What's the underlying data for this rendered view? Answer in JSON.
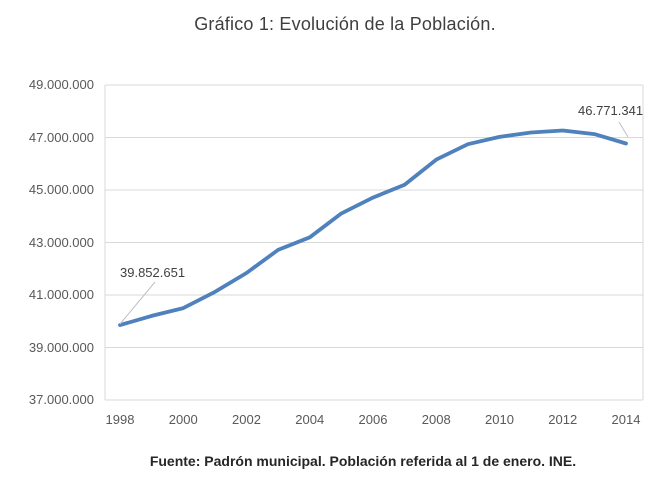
{
  "chart_data": {
    "type": "line",
    "title": "Gráfico 1: Evolución de la Población.",
    "source": "Fuente: Padrón municipal. Población referida al 1 de enero. INE.",
    "xlabel": "",
    "ylabel": "",
    "x": [
      1998,
      1999,
      2000,
      2001,
      2002,
      2003,
      2004,
      2005,
      2006,
      2007,
      2008,
      2009,
      2010,
      2011,
      2012,
      2013,
      2014
    ],
    "series": [
      {
        "name": "Población",
        "values": [
          39852651,
          40202160,
          40499791,
          41116842,
          41837894,
          42717064,
          43197684,
          44108530,
          44708964,
          45200737,
          46157822,
          46745807,
          47021031,
          47190493,
          47265321,
          47129783,
          46771341
        ]
      }
    ],
    "x_ticks": [
      "1998",
      "2000",
      "2002",
      "2004",
      "2006",
      "2008",
      "2010",
      "2012",
      "2014"
    ],
    "y_ticks": [
      "49.000.000",
      "47.000.000",
      "45.000.000",
      "43.000.000",
      "41.000.000",
      "39.000.000",
      "37.000.000"
    ],
    "ylim": [
      37000000,
      49000000
    ],
    "grid": true,
    "legend_position": "none",
    "annotations": [
      {
        "x": 1998,
        "value": 39852651,
        "text": "39.852.651"
      },
      {
        "x": 2014,
        "value": 46771341,
        "text": "46.771.341"
      }
    ],
    "colors": {
      "line": "#4F81BD",
      "grid": "#D9D9D9",
      "ticks": "#595959",
      "data_labels": "#404040",
      "leader": "#BFBFBF"
    }
  }
}
